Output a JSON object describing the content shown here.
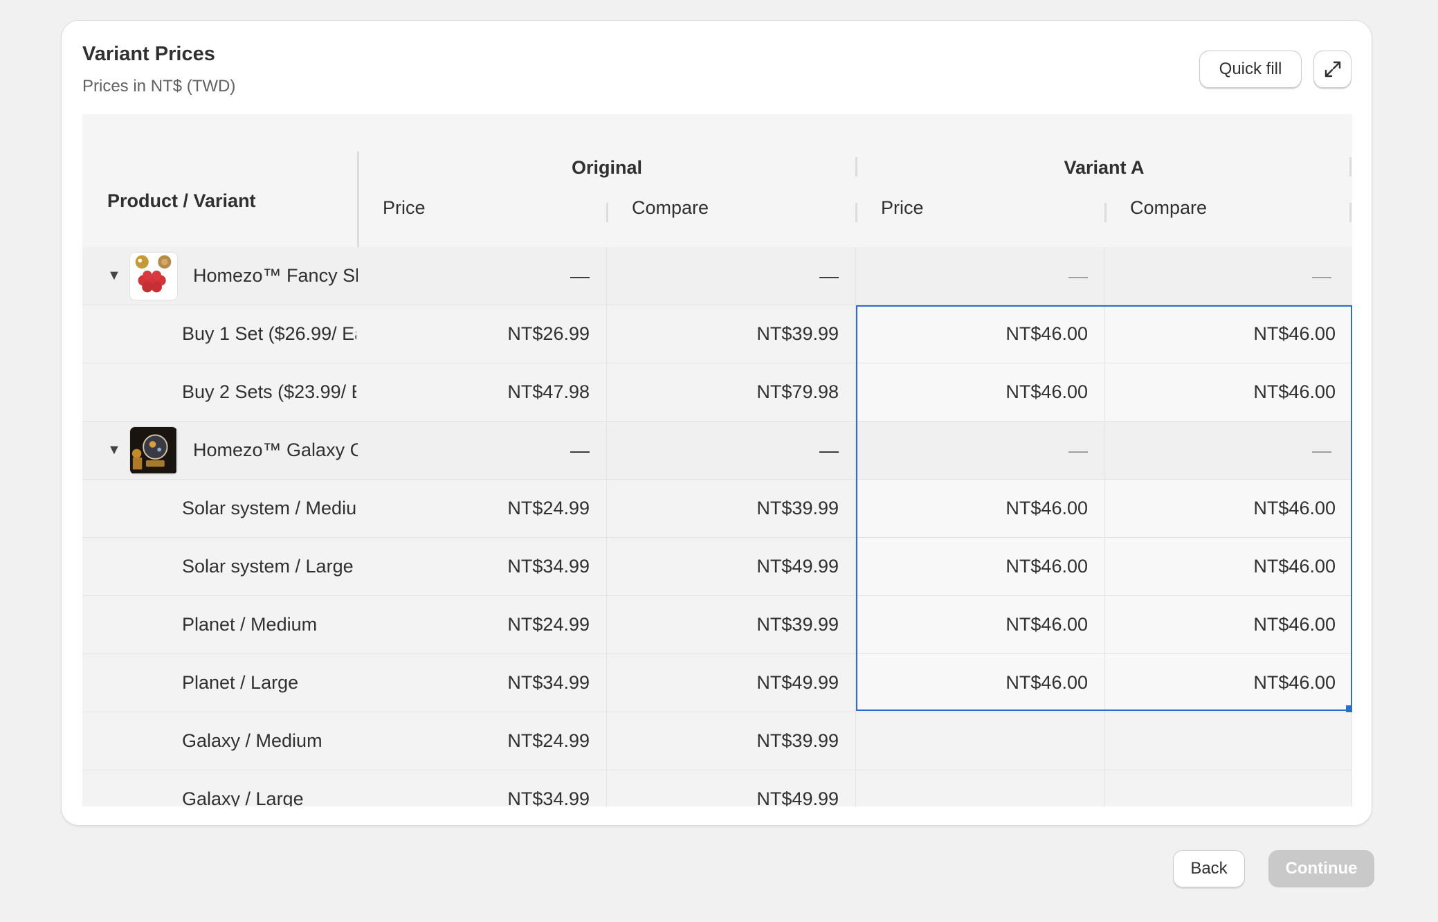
{
  "card": {
    "title": "Variant Prices",
    "subtitle": "Prices in NT$ (TWD)",
    "quick_fill_label": "Quick fill",
    "expand_icon": "expand-arrows-icon"
  },
  "table": {
    "header": {
      "product_variant": "Product / Variant",
      "group_original": "Original",
      "group_variant_a": "Variant A",
      "price": "Price",
      "compare": "Compare"
    },
    "products": [
      {
        "name": "Homezo™ Fancy Sh",
        "toggle": "▼",
        "original_price": "—",
        "original_compare": "—",
        "variant_price": "—",
        "variant_compare": "—",
        "variants": [
          {
            "name": "Buy 1 Set ($26.99/ Ea",
            "original_price": "NT$26.99",
            "original_compare": "NT$39.99",
            "variant_price": "NT$46.00",
            "variant_compare": "NT$46.00"
          },
          {
            "name": "Buy 2 Sets ($23.99/ E",
            "original_price": "NT$47.98",
            "original_compare": "NT$79.98",
            "variant_price": "NT$46.00",
            "variant_compare": "NT$46.00"
          }
        ]
      },
      {
        "name": "Homezo™ Galaxy C",
        "toggle": "▼",
        "original_price": "—",
        "original_compare": "—",
        "variant_price": "—",
        "variant_compare": "—",
        "variants": [
          {
            "name": "Solar system / Mediu",
            "original_price": "NT$24.99",
            "original_compare": "NT$39.99",
            "variant_price": "NT$46.00",
            "variant_compare": "NT$46.00"
          },
          {
            "name": "Solar system / Large",
            "original_price": "NT$34.99",
            "original_compare": "NT$49.99",
            "variant_price": "NT$46.00",
            "variant_compare": "NT$46.00"
          },
          {
            "name": "Planet / Medium",
            "original_price": "NT$24.99",
            "original_compare": "NT$39.99",
            "variant_price": "NT$46.00",
            "variant_compare": "NT$46.00"
          },
          {
            "name": "Planet / Large",
            "original_price": "NT$34.99",
            "original_compare": "NT$49.99",
            "variant_price": "NT$46.00",
            "variant_compare": "NT$46.00"
          },
          {
            "name": "Galaxy / Medium",
            "original_price": "NT$24.99",
            "original_compare": "NT$39.99",
            "variant_price": "",
            "variant_compare": ""
          },
          {
            "name": "Galaxy / Large",
            "original_price": "NT$34.99",
            "original_compare": "NT$49.99",
            "variant_price": "",
            "variant_compare": ""
          }
        ]
      }
    ]
  },
  "footer": {
    "back_label": "Back",
    "continue_label": "Continue"
  },
  "colors": {
    "selection": "#2c6ecb",
    "continue_disabled": "#c9c9c9"
  }
}
